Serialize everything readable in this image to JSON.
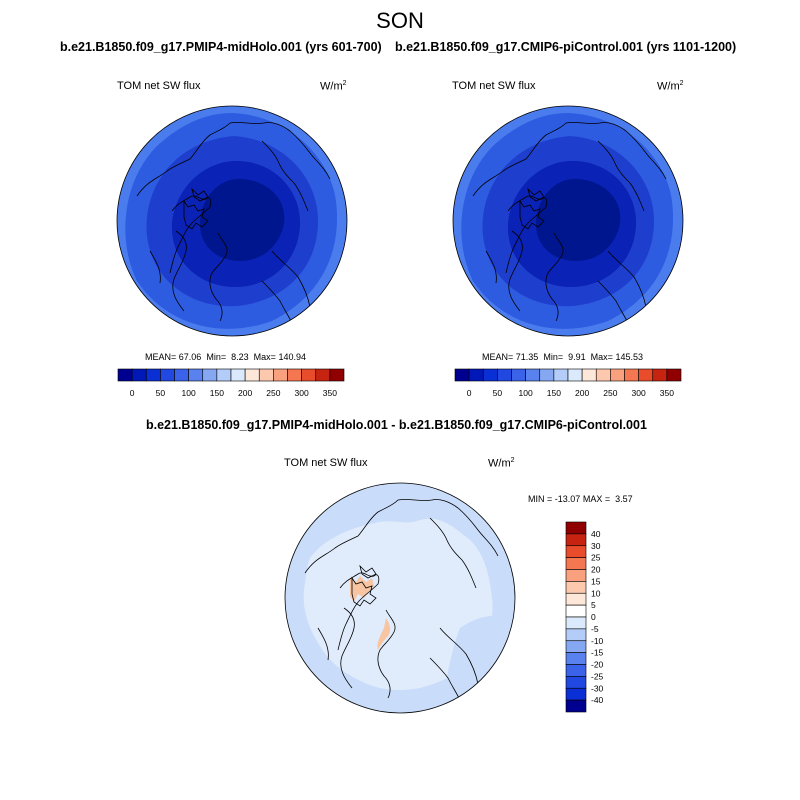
{
  "figure": {
    "title": "SON"
  },
  "panels": [
    {
      "id": "midHolo",
      "title": "b.e21.B1850.f09_g17.PMIP4-midHolo.001 (yrs 601-700)",
      "variable": "TOM net SW flux",
      "units": "W/m",
      "units_exp": "2",
      "stats": {
        "mean_label": "MEAN=",
        "mean": "67.06",
        "min_label": "Min=",
        "min": "8.23",
        "max_label": "Max=",
        "max": "140.94"
      },
      "colorbar": {
        "tick_labels": [
          "0",
          "50",
          "100",
          "150",
          "200",
          "250",
          "300",
          "350"
        ],
        "colors": [
          "#000090",
          "#0018b8",
          "#0a2fd5",
          "#2148e0",
          "#3a63ea",
          "#5a82ef",
          "#86a8f3",
          "#b3cdf8",
          "#daeafc",
          "#fde7d9",
          "#fcc8ae",
          "#f9a07f",
          "#f47752",
          "#e84c2a",
          "#c62410",
          "#900000"
        ]
      },
      "map": {
        "projection": "north-polar-stereographic",
        "contour_colors": [
          "#000096",
          "#0a22b5",
          "#1e3fcd",
          "#2e5ce1",
          "#4a7cee"
        ],
        "ring_values": [
          40,
          60,
          80,
          100,
          120
        ]
      }
    },
    {
      "id": "piControl",
      "title": "b.e21.B1850.f09_g17.CMIP6-piControl.001 (yrs 1101-1200)",
      "variable": "TOM net SW flux",
      "units": "W/m",
      "units_exp": "2",
      "stats": {
        "mean_label": "MEAN=",
        "mean": "71.35",
        "min_label": "Min=",
        "min": "9.91",
        "max_label": "Max=",
        "max": "145.53"
      },
      "colorbar": {
        "tick_labels": [
          "0",
          "50",
          "100",
          "150",
          "200",
          "250",
          "300",
          "350"
        ],
        "colors": [
          "#000090",
          "#0018b8",
          "#0a2fd5",
          "#2148e0",
          "#3a63ea",
          "#5a82ef",
          "#86a8f3",
          "#b3cdf8",
          "#daeafc",
          "#fde7d9",
          "#fcc8ae",
          "#f9a07f",
          "#f47752",
          "#e84c2a",
          "#c62410",
          "#900000"
        ]
      },
      "map": {
        "projection": "north-polar-stereographic",
        "contour_colors": [
          "#000096",
          "#0a22b5",
          "#1e3fcd",
          "#2e5ce1",
          "#4a7cee"
        ],
        "ring_values": [
          40,
          60,
          80,
          100,
          120
        ]
      }
    },
    {
      "id": "difference",
      "title": "b.e21.B1850.f09_g17.PMIP4-midHolo.001 - b.e21.B1850.f09_g17.CMIP6-piControl.001",
      "variable": "TOM net SW flux",
      "units": "W/m",
      "units_exp": "2",
      "stats": {
        "min_label": "MIN =",
        "min": "-13.07",
        "max_label": "MAX =",
        "max": "3.57"
      },
      "colorbar": {
        "tick_labels": [
          "40",
          "30",
          "25",
          "20",
          "15",
          "10",
          "5",
          "0",
          "-5",
          "-10",
          "-15",
          "-20",
          "-25",
          "-30",
          "-40"
        ],
        "colors": [
          "#900000",
          "#c62410",
          "#e84c2a",
          "#f47752",
          "#f9a07f",
          "#fcc8ae",
          "#fde7d9",
          "#ffffff",
          "#daeafc",
          "#b3cdf8",
          "#86a8f3",
          "#5a82ef",
          "#3a63ea",
          "#2148e0",
          "#0a2fd5",
          "#000090"
        ]
      },
      "map": {
        "projection": "north-polar-stereographic",
        "background_color": "#c9dcf9",
        "inner_color": "#e0ecfc",
        "positive_color": "#f7c5a2"
      }
    }
  ]
}
